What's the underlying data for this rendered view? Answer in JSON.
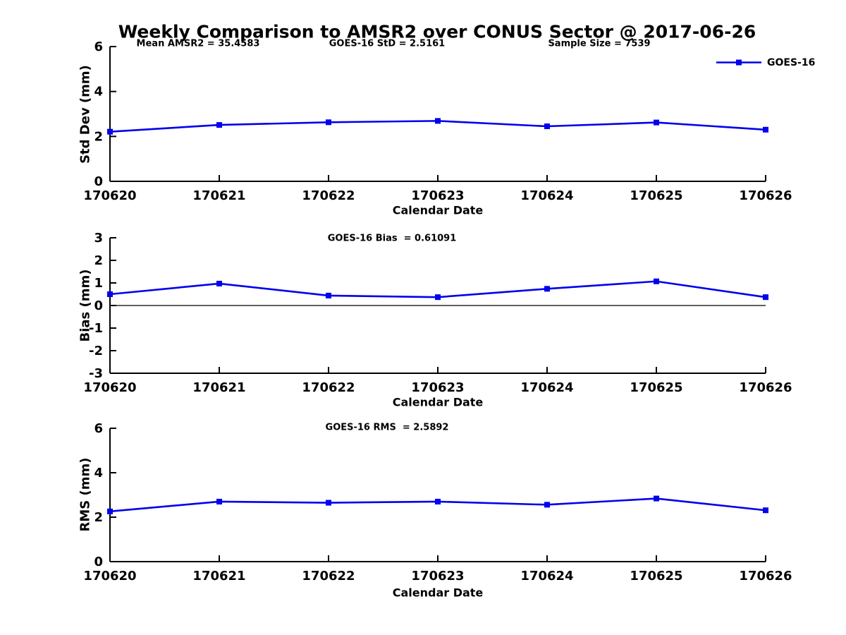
{
  "title": "Weekly Comparison to AMSR2 over CONUS Sector @ 2017-06-26",
  "colors": {
    "series": "#0000ee",
    "axis": "#000000",
    "text": "#000000",
    "background": "#ffffff"
  },
  "legend": {
    "label": "GOES-16",
    "position": "top-right",
    "marker": "square"
  },
  "chart_data": [
    {
      "type": "line",
      "name": "std-dev",
      "annotations": [
        "Mean AMSR2 = 35.4583",
        "GOES-16 StD = 2.5161",
        "Sample Size = 7539"
      ],
      "ylabel": "Std Dev (mm)",
      "xlabel": "Calendar Date",
      "categories": [
        "170620",
        "170621",
        "170622",
        "170623",
        "170624",
        "170625",
        "170626"
      ],
      "series": [
        {
          "name": "GOES-16",
          "color": "#0000ee",
          "marker": "square",
          "values": [
            2.21,
            2.51,
            2.63,
            2.69,
            2.45,
            2.62,
            2.3
          ]
        }
      ],
      "ylim": [
        0,
        6
      ],
      "yticks": [
        0,
        2,
        4,
        6
      ],
      "grid": false,
      "zero_line": false,
      "legend_position": "top-right"
    },
    {
      "type": "line",
      "name": "bias",
      "annotations": [
        "GOES-16 Bias  = 0.61091"
      ],
      "ylabel": "Bias (mm)",
      "xlabel": "Calendar Date",
      "categories": [
        "170620",
        "170621",
        "170622",
        "170623",
        "170624",
        "170625",
        "170626"
      ],
      "series": [
        {
          "name": "GOES-16",
          "color": "#0000ee",
          "marker": "square",
          "values": [
            0.5,
            0.97,
            0.44,
            0.37,
            0.74,
            1.07,
            0.37
          ]
        }
      ],
      "ylim": [
        -3,
        3
      ],
      "yticks": [
        -3,
        -2,
        -1,
        0,
        1,
        2,
        3
      ],
      "grid": false,
      "zero_line": true
    },
    {
      "type": "line",
      "name": "rms",
      "annotations": [
        "GOES-16 RMS  = 2.5892"
      ],
      "ylabel": "RMS (mm)",
      "xlabel": "Calendar Date",
      "categories": [
        "170620",
        "170621",
        "170622",
        "170623",
        "170624",
        "170625",
        "170626"
      ],
      "series": [
        {
          "name": "GOES-16",
          "color": "#0000ee",
          "marker": "square",
          "values": [
            2.26,
            2.7,
            2.65,
            2.7,
            2.56,
            2.84,
            2.31
          ]
        }
      ],
      "ylim": [
        0,
        6
      ],
      "yticks": [
        0,
        2,
        4,
        6
      ],
      "grid": false,
      "zero_line": false
    }
  ]
}
